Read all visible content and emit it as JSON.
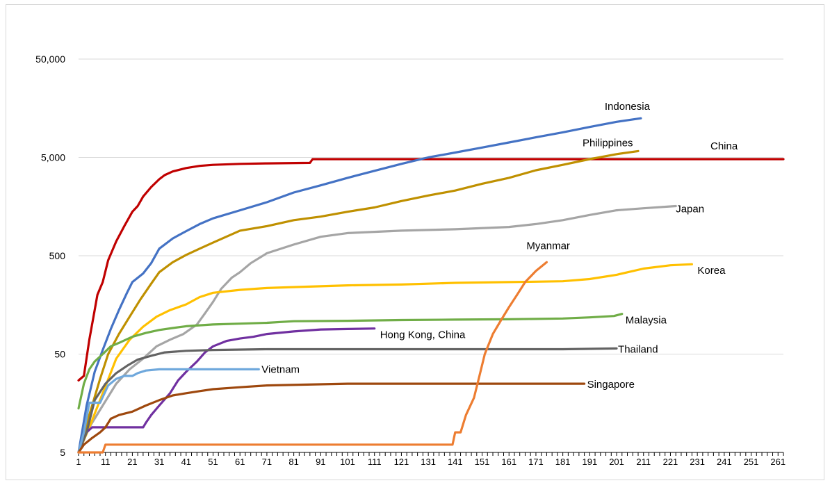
{
  "chart_data": {
    "type": "line",
    "title": "",
    "xlabel": "",
    "ylabel": "",
    "yscale": "log",
    "ylim": [
      5,
      50000
    ],
    "xlim": [
      1,
      263
    ],
    "y_ticks": [
      5,
      50,
      500,
      5000,
      50000
    ],
    "y_tick_labels": [
      "5",
      "50",
      "500",
      "5,000",
      "50,000"
    ],
    "x_ticks": [
      1,
      11,
      21,
      31,
      41,
      51,
      61,
      71,
      81,
      91,
      101,
      111,
      121,
      131,
      141,
      151,
      161,
      171,
      181,
      191,
      201,
      211,
      221,
      231,
      241,
      251,
      261
    ],
    "grid": "horizontal",
    "legend": "none (series labelled directly at line ends)",
    "series": [
      {
        "name": "China",
        "color": "#c00000",
        "points": [
          [
            1,
            27
          ],
          [
            3,
            30
          ],
          [
            5,
            70
          ],
          [
            7,
            140
          ],
          [
            8,
            200
          ],
          [
            10,
            270
          ],
          [
            12,
            450
          ],
          [
            15,
            700
          ],
          [
            18,
            1000
          ],
          [
            21,
            1400
          ],
          [
            23,
            1600
          ],
          [
            25,
            2000
          ],
          [
            28,
            2500
          ],
          [
            31,
            3000
          ],
          [
            33,
            3300
          ],
          [
            36,
            3600
          ],
          [
            41,
            3900
          ],
          [
            46,
            4100
          ],
          [
            51,
            4200
          ],
          [
            61,
            4300
          ],
          [
            71,
            4350
          ],
          [
            87,
            4400
          ],
          [
            88,
            4800
          ],
          [
            100,
            4800
          ],
          [
            200,
            4800
          ],
          [
            263,
            4800
          ]
        ]
      },
      {
        "name": "Indonesia",
        "color": "#4472c4",
        "points": [
          [
            1,
            5
          ],
          [
            4,
            15
          ],
          [
            7,
            33
          ],
          [
            10,
            55
          ],
          [
            13,
            90
          ],
          [
            16,
            140
          ],
          [
            19,
            210
          ],
          [
            21,
            270
          ],
          [
            25,
            330
          ],
          [
            28,
            420
          ],
          [
            31,
            590
          ],
          [
            36,
            750
          ],
          [
            41,
            890
          ],
          [
            46,
            1050
          ],
          [
            51,
            1200
          ],
          [
            61,
            1450
          ],
          [
            71,
            1750
          ],
          [
            81,
            2200
          ],
          [
            91,
            2600
          ],
          [
            101,
            3100
          ],
          [
            111,
            3650
          ],
          [
            121,
            4300
          ],
          [
            131,
            5000
          ],
          [
            141,
            5600
          ],
          [
            151,
            6300
          ],
          [
            161,
            7100
          ],
          [
            171,
            8000
          ],
          [
            181,
            9000
          ],
          [
            191,
            10200
          ],
          [
            201,
            11500
          ],
          [
            210,
            12500
          ]
        ]
      },
      {
        "name": "Philippines",
        "color": "#bf9000",
        "points": [
          [
            1,
            5
          ],
          [
            5,
            12
          ],
          [
            9,
            28
          ],
          [
            12,
            50
          ],
          [
            16,
            80
          ],
          [
            20,
            120
          ],
          [
            24,
            180
          ],
          [
            28,
            260
          ],
          [
            31,
            340
          ],
          [
            36,
            430
          ],
          [
            41,
            510
          ],
          [
            46,
            590
          ],
          [
            51,
            680
          ],
          [
            61,
            900
          ],
          [
            71,
            1000
          ],
          [
            81,
            1150
          ],
          [
            91,
            1250
          ],
          [
            101,
            1400
          ],
          [
            111,
            1550
          ],
          [
            121,
            1800
          ],
          [
            131,
            2050
          ],
          [
            141,
            2300
          ],
          [
            151,
            2700
          ],
          [
            161,
            3100
          ],
          [
            171,
            3700
          ],
          [
            181,
            4200
          ],
          [
            191,
            4800
          ],
          [
            201,
            5400
          ],
          [
            209,
            5800
          ]
        ]
      },
      {
        "name": "Japan",
        "color": "#a5a5a5",
        "points": [
          [
            1,
            5
          ],
          [
            5,
            9
          ],
          [
            10,
            15
          ],
          [
            15,
            25
          ],
          [
            20,
            35
          ],
          [
            25,
            45
          ],
          [
            30,
            60
          ],
          [
            35,
            70
          ],
          [
            40,
            80
          ],
          [
            45,
            100
          ],
          [
            48,
            130
          ],
          [
            51,
            170
          ],
          [
            54,
            230
          ],
          [
            58,
            300
          ],
          [
            61,
            340
          ],
          [
            65,
            420
          ],
          [
            71,
            530
          ],
          [
            81,
            650
          ],
          [
            91,
            780
          ],
          [
            101,
            850
          ],
          [
            121,
            900
          ],
          [
            141,
            930
          ],
          [
            161,
            980
          ],
          [
            171,
            1050
          ],
          [
            181,
            1150
          ],
          [
            191,
            1300
          ],
          [
            201,
            1450
          ],
          [
            211,
            1520
          ],
          [
            223,
            1600
          ]
        ]
      },
      {
        "name": "Korea",
        "color": "#ffc000",
        "points": [
          [
            1,
            5
          ],
          [
            5,
            9
          ],
          [
            10,
            20
          ],
          [
            15,
            45
          ],
          [
            20,
            70
          ],
          [
            25,
            95
          ],
          [
            30,
            120
          ],
          [
            35,
            140
          ],
          [
            41,
            160
          ],
          [
            46,
            190
          ],
          [
            51,
            210
          ],
          [
            61,
            225
          ],
          [
            71,
            235
          ],
          [
            81,
            240
          ],
          [
            101,
            250
          ],
          [
            121,
            255
          ],
          [
            141,
            265
          ],
          [
            161,
            270
          ],
          [
            181,
            275
          ],
          [
            191,
            290
          ],
          [
            201,
            320
          ],
          [
            211,
            370
          ],
          [
            221,
            400
          ],
          [
            229,
            410
          ]
        ]
      },
      {
        "name": "Malaysia",
        "color": "#70ad47",
        "points": [
          [
            1,
            14
          ],
          [
            3,
            25
          ],
          [
            5,
            35
          ],
          [
            7,
            42
          ],
          [
            10,
            50
          ],
          [
            13,
            60
          ],
          [
            16,
            65
          ],
          [
            21,
            75
          ],
          [
            26,
            82
          ],
          [
            31,
            88
          ],
          [
            36,
            92
          ],
          [
            41,
            96
          ],
          [
            51,
            100
          ],
          [
            61,
            102
          ],
          [
            71,
            104
          ],
          [
            81,
            108
          ],
          [
            101,
            109
          ],
          [
            121,
            111
          ],
          [
            141,
            112
          ],
          [
            161,
            113
          ],
          [
            181,
            115
          ],
          [
            191,
            118
          ],
          [
            200,
            122
          ],
          [
            203,
            128
          ]
        ]
      },
      {
        "name": "Hong Kong, China",
        "color": "#7030a0",
        "points": [
          [
            1,
            5
          ],
          [
            4,
            8
          ],
          [
            6,
            9
          ],
          [
            25,
            9
          ],
          [
            26,
            10
          ],
          [
            28,
            12
          ],
          [
            31,
            15
          ],
          [
            35,
            20
          ],
          [
            38,
            27
          ],
          [
            41,
            33
          ],
          [
            45,
            42
          ],
          [
            48,
            52
          ],
          [
            51,
            60
          ],
          [
            56,
            68
          ],
          [
            61,
            72
          ],
          [
            66,
            75
          ],
          [
            71,
            80
          ],
          [
            81,
            85
          ],
          [
            91,
            89
          ],
          [
            101,
            90
          ],
          [
            111,
            91
          ]
        ]
      },
      {
        "name": "Thailand",
        "color": "#636363",
        "points": [
          [
            1,
            5
          ],
          [
            4,
            8
          ],
          [
            7,
            17
          ],
          [
            11,
            25
          ],
          [
            15,
            32
          ],
          [
            19,
            38
          ],
          [
            23,
            44
          ],
          [
            28,
            48
          ],
          [
            33,
            52
          ],
          [
            41,
            54
          ],
          [
            51,
            55
          ],
          [
            71,
            56
          ],
          [
            91,
            56
          ],
          [
            101,
            56
          ],
          [
            181,
            56
          ],
          [
            201,
            57
          ]
        ]
      },
      {
        "name": "Vietnam",
        "color": "#6fa8dc",
        "points": [
          [
            1,
            5
          ],
          [
            3,
            8
          ],
          [
            5,
            16
          ],
          [
            7,
            16
          ],
          [
            9,
            16
          ],
          [
            12,
            24
          ],
          [
            15,
            28
          ],
          [
            18,
            30
          ],
          [
            21,
            30
          ],
          [
            23,
            32
          ],
          [
            26,
            34
          ],
          [
            31,
            35
          ],
          [
            41,
            35
          ],
          [
            51,
            35
          ],
          [
            61,
            35
          ],
          [
            68,
            35
          ]
        ]
      },
      {
        "name": "Singapore",
        "color": "#9e480e",
        "points": [
          [
            1,
            5
          ],
          [
            3,
            6
          ],
          [
            6,
            7
          ],
          [
            9,
            8
          ],
          [
            11,
            9
          ],
          [
            13,
            11
          ],
          [
            16,
            12
          ],
          [
            21,
            13
          ],
          [
            26,
            15
          ],
          [
            31,
            17
          ],
          [
            36,
            19
          ],
          [
            41,
            20
          ],
          [
            46,
            21
          ],
          [
            51,
            22
          ],
          [
            61,
            23
          ],
          [
            71,
            24
          ],
          [
            101,
            25
          ],
          [
            141,
            25
          ],
          [
            189,
            25
          ]
        ]
      },
      {
        "name": "Myanmar",
        "color": "#ed7d31",
        "points": [
          [
            1,
            5
          ],
          [
            10,
            5
          ],
          [
            11,
            6
          ],
          [
            137,
            6
          ],
          [
            140,
            6
          ],
          [
            141,
            8
          ],
          [
            143,
            8
          ],
          [
            145,
            12
          ],
          [
            148,
            18
          ],
          [
            150,
            30
          ],
          [
            152,
            50
          ],
          [
            155,
            80
          ],
          [
            158,
            110
          ],
          [
            161,
            150
          ],
          [
            164,
            200
          ],
          [
            167,
            270
          ],
          [
            171,
            350
          ],
          [
            175,
            430
          ]
        ]
      }
    ]
  }
}
